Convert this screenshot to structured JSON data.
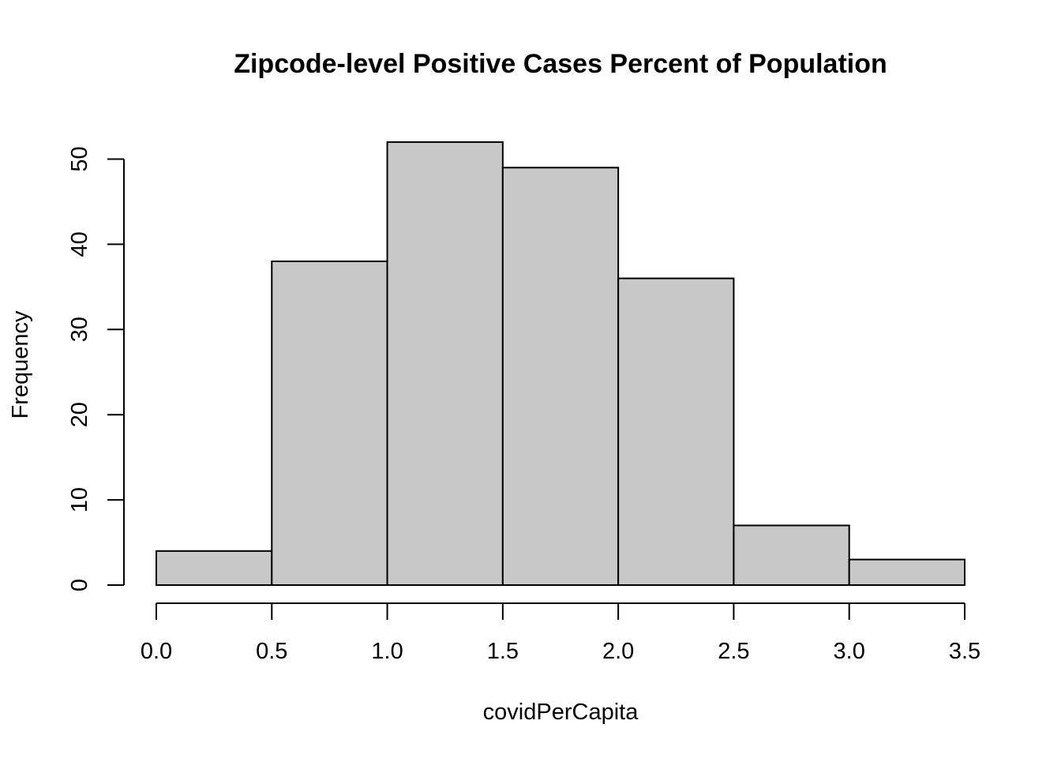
{
  "chart_data": {
    "type": "bar",
    "title": "Zipcode-level Positive Cases Percent of Population",
    "xlabel": "covidPerCapita",
    "ylabel": "Frequency",
    "bin_edges": [
      0.0,
      0.5,
      1.0,
      1.5,
      2.0,
      2.5,
      3.0,
      3.5
    ],
    "values": [
      4,
      38,
      52,
      49,
      36,
      7,
      3
    ],
    "xlim": [
      0.0,
      3.5
    ],
    "ylim": [
      0,
      52
    ],
    "x_ticks": [
      "0.0",
      "0.5",
      "1.0",
      "1.5",
      "2.0",
      "2.5",
      "3.0",
      "3.5"
    ],
    "y_ticks": [
      "0",
      "10",
      "20",
      "30",
      "40",
      "50"
    ],
    "grid": false,
    "colors": {
      "bar_fill": "#c8c8c8",
      "bar_stroke": "#000000"
    }
  }
}
